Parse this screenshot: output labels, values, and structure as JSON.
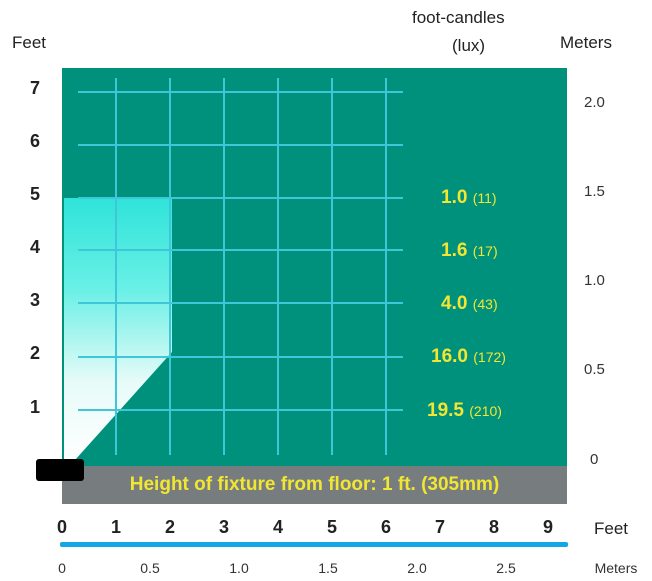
{
  "axes": {
    "left_unit": "Feet",
    "right_unit": "Meters",
    "bottom_feet_unit": "Feet",
    "bottom_meters_unit": "Meters",
    "left_ticks": [
      "7",
      "6",
      "5",
      "4",
      "3",
      "2",
      "1"
    ],
    "right_ticks": [
      "2.0",
      "1.5",
      "1.0",
      "0.5",
      "0"
    ],
    "bottom_feet_ticks": [
      "0",
      "1",
      "2",
      "3",
      "4",
      "5",
      "6",
      "7",
      "8",
      "9"
    ],
    "bottom_meter_ticks": [
      "0",
      "0.5",
      "1.0",
      "1.5",
      "2.0",
      "2.5"
    ]
  },
  "readings_header": {
    "line1": "foot-candles",
    "line2": "(lux)"
  },
  "readings": [
    {
      "fc": "1.0",
      "lux": "(11)"
    },
    {
      "fc": "1.6",
      "lux": "(17)"
    },
    {
      "fc": "4.0",
      "lux": "(43)"
    },
    {
      "fc": "16.0",
      "lux": "(172)"
    },
    {
      "fc": "19.5",
      "lux": "(210)"
    }
  ],
  "caption": "Height of fixture from floor: 1 ft. (305mm)",
  "colors": {
    "panel": "#00917d",
    "grid": "#3fc6d8",
    "reading_text": "#f2e632",
    "caption_bar": "#777c7f",
    "light_beam": "#29e0d8",
    "meter_line": "#15a6e8"
  }
}
